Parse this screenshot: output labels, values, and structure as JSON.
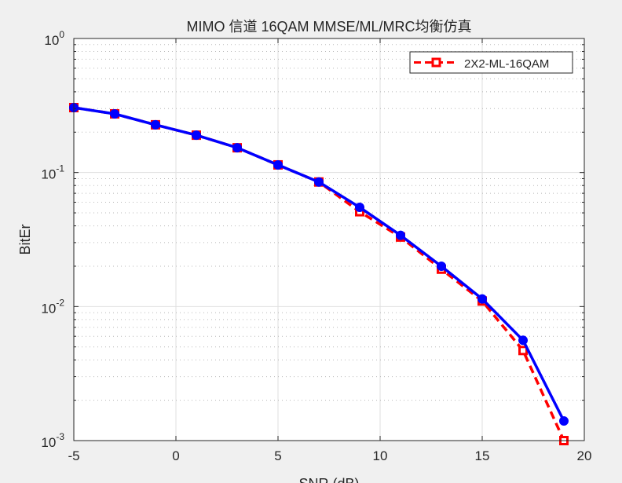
{
  "chart_data": {
    "type": "line",
    "title": "MIMO 信道 16QAM MMSE/ML/MRC均衡仿真",
    "xlabel": "SNR (dB)",
    "ylabel": "BitEr",
    "xlim": [
      -5,
      20
    ],
    "ylim": [
      0.001,
      1
    ],
    "yscale": "log",
    "grid": true,
    "minor_grid": true,
    "legend_position": "northeast",
    "x_ticks": [
      "-5",
      "0",
      "5",
      "10",
      "15",
      "20"
    ],
    "y_ticks": [
      {
        "base": "10",
        "exp": "0"
      },
      {
        "base": "10",
        "exp": "-1"
      },
      {
        "base": "10",
        "exp": "-2"
      },
      {
        "base": "10",
        "exp": "-3"
      }
    ],
    "x": [
      -5,
      -3,
      -1,
      1,
      3,
      5,
      7,
      9,
      11,
      13,
      15,
      17,
      19
    ],
    "series": [
      {
        "name": "2X2-ML-16QAM",
        "color": "#ff0000",
        "style": "dashed",
        "marker": "square",
        "in_legend": true,
        "values": [
          0.305,
          0.274,
          0.227,
          0.19,
          0.153,
          0.114,
          0.085,
          0.051,
          0.033,
          0.019,
          0.011,
          0.0047,
          0.001
        ]
      },
      {
        "name": "",
        "color": "#0000ff",
        "style": "solid",
        "marker": "circle",
        "in_legend": false,
        "values": [
          0.305,
          0.274,
          0.227,
          0.19,
          0.153,
          0.114,
          0.085,
          0.055,
          0.034,
          0.02,
          0.0114,
          0.0056,
          0.0014
        ]
      }
    ]
  },
  "legend": {
    "entries": [
      "2X2-ML-16QAM"
    ]
  }
}
